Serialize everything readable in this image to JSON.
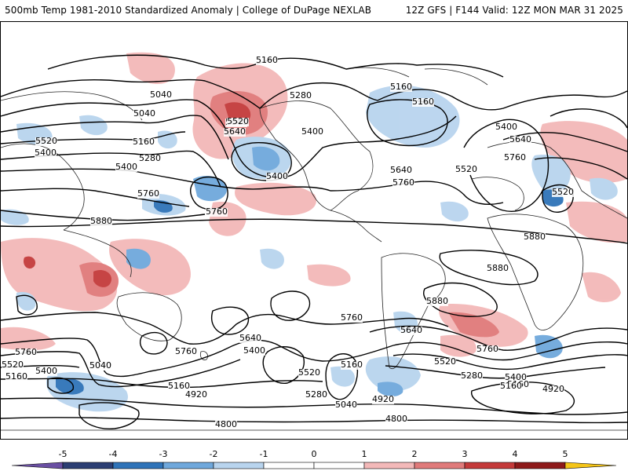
{
  "header": {
    "title_left": "500mb Temp 1981-2010 Standardized Anomaly | College of DuPage NEXLAB",
    "title_right": "12Z GFS | F144 Valid: 12Z MON MAR 31 2025"
  },
  "colorbar": {
    "ticks": [
      "-5",
      "-4",
      "-3",
      "-2",
      "-1",
      "0",
      "1",
      "2",
      "3",
      "4",
      "5"
    ],
    "colors": [
      "#6a4fa3",
      "#2c3e73",
      "#2f73b8",
      "#6fa8dc",
      "#b8d4ee",
      "#ffffff",
      "#ffffff",
      "#f3b8b8",
      "#e07a7a",
      "#c43a3a",
      "#8e1a1a",
      "#f5c518"
    ]
  },
  "map": {
    "contour_labels": [
      "5160",
      "5040",
      "5040",
      "5280",
      "5160",
      "5160",
      "5520",
      "5640",
      "5520",
      "5640",
      "5400",
      "5400",
      "5280",
      "5400",
      "5400",
      "5160",
      "5640",
      "5520",
      "5760",
      "5760",
      "5640",
      "5400",
      "5760",
      "5760",
      "5520",
      "5880",
      "5880",
      "5880",
      "5880",
      "5760",
      "5760",
      "5640",
      "5760",
      "5640",
      "5400",
      "5520",
      "5160",
      "5400",
      "5520",
      "5280",
      "5160",
      "5160",
      "5040",
      "5160",
      "5040",
      "5520",
      "5400",
      "5160",
      "4920",
      "5280",
      "5040",
      "4920",
      "4800",
      "4800",
      "4920",
      "5040",
      "5160",
      "5280",
      "5760"
    ]
  }
}
